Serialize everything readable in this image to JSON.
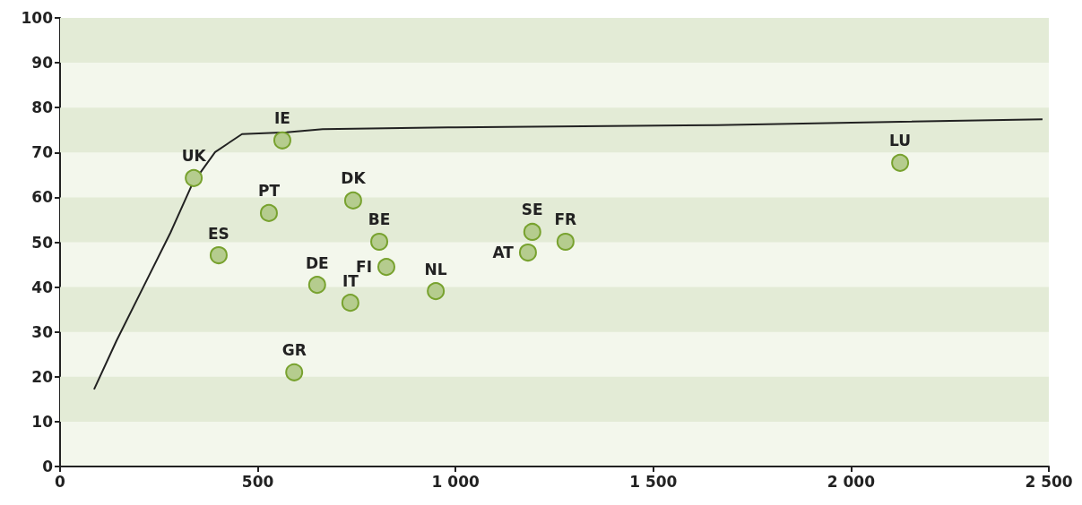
{
  "chart_data": {
    "type": "scatter",
    "xlim": [
      0,
      2500
    ],
    "ylim": [
      0,
      100
    ],
    "xticks": [
      0,
      500,
      {
        "value": 1000,
        "label": "1 000"
      },
      {
        "value": 1500,
        "label": "1 500"
      },
      {
        "value": 2000,
        "label": "2 000"
      },
      {
        "value": 2500,
        "label": "2 500"
      }
    ],
    "yticks": [
      0,
      10,
      20,
      30,
      40,
      50,
      60,
      70,
      80,
      90,
      100
    ],
    "marker": "circle",
    "bands": [
      {
        "axis": "y",
        "from": 10,
        "to": 20,
        "color": "#e3ebd6"
      },
      {
        "axis": "y",
        "from": 30,
        "to": 40,
        "color": "#e3ebd6"
      },
      {
        "axis": "y",
        "from": 50,
        "to": 60,
        "color": "#e3ebd6"
      },
      {
        "axis": "y",
        "from": 70,
        "to": 80,
        "color": "#e3ebd6"
      },
      {
        "axis": "y",
        "from": 90,
        "to": 100,
        "color": "#e3ebd6"
      }
    ],
    "series": [
      {
        "color": "#b5cc8e",
        "x": [
          338,
          562,
          401,
          528,
          741,
          807,
          825,
          650,
          734,
          592,
          950,
          1183,
          1194,
          1278,
          2124
        ],
        "values": [
          64.3,
          72.7,
          47.1,
          56.5,
          59.3,
          50.1,
          44.5,
          40.5,
          36.5,
          21.0,
          39.1,
          47.7,
          52.3,
          50.1,
          67.7
        ],
        "value_labels": [
          "UK",
          "IE",
          "ES",
          "PT",
          "DK",
          "BE",
          "FI",
          "DE",
          "IT",
          "GR",
          "NL",
          "AT",
          "SE",
          "FR",
          "LU"
        ]
      },
      {
        "type": "line",
        "color": "#222222",
        "marker": "none",
        "x": [
          86,
          143,
          211,
          279,
          335,
          392,
          460,
          573,
          664,
          981,
          1661,
          2484
        ],
        "values": [
          17.2,
          28.1,
          40.1,
          52.1,
          63.1,
          70.1,
          74.1,
          74.5,
          75.2,
          75.6,
          76.1,
          77.4
        ]
      }
    ]
  }
}
